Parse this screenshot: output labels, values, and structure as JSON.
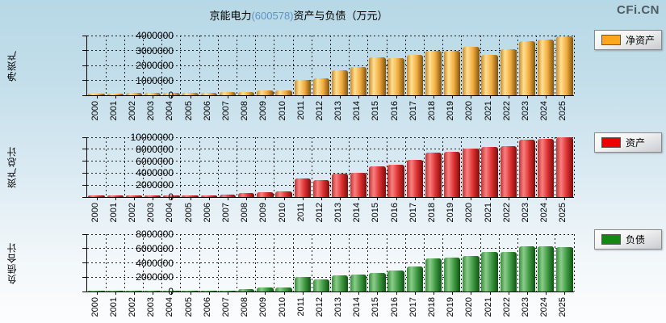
{
  "page": {
    "title_name": "京能电力",
    "title_code": "(600578)",
    "title_suffix": "资产与负债（万元）",
    "logo": "CFi.CN"
  },
  "colors": {
    "title_code_color": "#5e93c8",
    "background_top": "#b7d8e6",
    "background_bottom": "#fcfdfe"
  },
  "chart_data": [
    {
      "type": "bar",
      "axis_label": "净资产",
      "legend": "净资产",
      "colors": {
        "swatch": "#FFA51E",
        "bar_gradient": [
          "#c98a2a",
          "#ffe092",
          "#f1ac3e",
          "#7d5210"
        ]
      },
      "ylim": [
        0,
        4000000
      ],
      "yticks": [
        "4000000",
        "3000000",
        "2000000",
        "1000000",
        "0"
      ],
      "grid": true,
      "legend_position": "top-right",
      "categories": [
        "2000",
        "2001",
        "2002",
        "2003",
        "2004",
        "2005",
        "2006",
        "2007",
        "2008",
        "2009",
        "2010",
        "2011",
        "2012",
        "2013",
        "2014",
        "2015",
        "2016",
        "2017",
        "2018",
        "2019",
        "2020",
        "2021",
        "2022",
        "2023",
        "2024",
        "2025"
      ],
      "values": [
        130000,
        135000,
        180000,
        180000,
        185000,
        170000,
        170000,
        200000,
        230000,
        300000,
        340000,
        1030000,
        1150000,
        1690000,
        1880000,
        2540000,
        2470000,
        2700000,
        2990000,
        2990000,
        3220000,
        2680000,
        3100000,
        3600000,
        3750000,
        3950000
      ]
    },
    {
      "type": "bar",
      "axis_label": "资产总计",
      "legend": "资产",
      "colors": {
        "swatch": "#EE0000",
        "bar_gradient": [
          "#bf3434",
          "#f98080",
          "#dd3030",
          "#7a0d0d"
        ]
      },
      "ylim": [
        0,
        10000000
      ],
      "yticks": [
        "10000000",
        "8000000",
        "6000000",
        "4000000",
        "2000000",
        "0"
      ],
      "grid": true,
      "legend_position": "top-right",
      "categories": [
        "2000",
        "2001",
        "2002",
        "2003",
        "2004",
        "2005",
        "2006",
        "2007",
        "2008",
        "2009",
        "2010",
        "2011",
        "2012",
        "2013",
        "2014",
        "2015",
        "2016",
        "2017",
        "2018",
        "2019",
        "2020",
        "2021",
        "2022",
        "2023",
        "2024",
        "2025"
      ],
      "values": [
        220000,
        230000,
        260000,
        270000,
        280000,
        260000,
        270000,
        450000,
        630000,
        850000,
        940000,
        3170000,
        2860000,
        3970000,
        4110000,
        5130000,
        5360000,
        6160000,
        7500000,
        7630000,
        8080000,
        8350000,
        8480000,
        9550000,
        9730000,
        9950000
      ]
    },
    {
      "type": "bar",
      "axis_label": "负债合计",
      "legend": "负债",
      "colors": {
        "swatch": "#128A12",
        "bar_gradient": [
          "#378e39",
          "#8ccc8c",
          "#3f9a42",
          "#0f5212"
        ]
      },
      "ylim": [
        0,
        8000000
      ],
      "yticks": [
        "8000000",
        "6000000",
        "4000000",
        "2000000",
        "0"
      ],
      "grid": true,
      "legend_position": "top-right",
      "categories": [
        "2000",
        "2001",
        "2002",
        "2003",
        "2004",
        "2005",
        "2006",
        "2007",
        "2008",
        "2009",
        "2010",
        "2011",
        "2012",
        "2013",
        "2014",
        "2015",
        "2016",
        "2017",
        "2018",
        "2019",
        "2020",
        "2021",
        "2022",
        "2023",
        "2024",
        "2025"
      ],
      "values": [
        90000,
        95000,
        80000,
        90000,
        95000,
        90000,
        100000,
        150000,
        370000,
        600000,
        570000,
        2030000,
        1690000,
        2210000,
        2330000,
        2630000,
        2930000,
        3490000,
        4580000,
        4730000,
        4960000,
        5520000,
        5480000,
        6270000,
        6270000,
        6160000
      ]
    }
  ]
}
